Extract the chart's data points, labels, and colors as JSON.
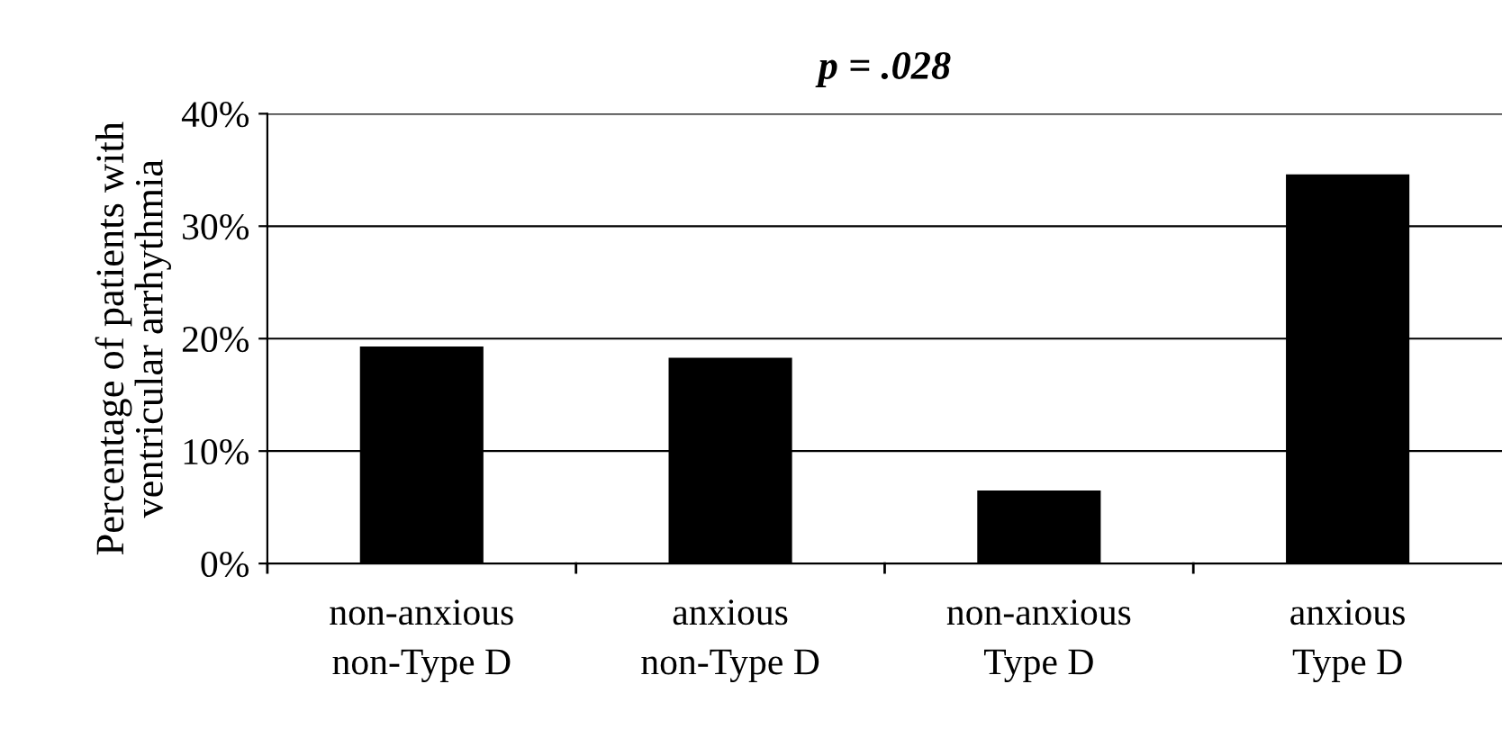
{
  "chart_data": {
    "type": "bar",
    "title": "p = .028",
    "ylabel": "Percentage of patients with\nventricular arrhythmia",
    "categories": [
      "non-anxious\nnon-Type D",
      "anxious\nnon-Type D",
      "non-anxious\nType D",
      "anxious\nType D"
    ],
    "values": [
      19.3,
      18.3,
      6.5,
      34.6
    ],
    "color": "#000000",
    "ylim": [
      0,
      40
    ],
    "yticks": [
      {
        "value": 0,
        "label": "0%"
      },
      {
        "value": 10,
        "label": "10%"
      },
      {
        "value": 20,
        "label": "20%"
      },
      {
        "value": 30,
        "label": "30%"
      },
      {
        "value": 40,
        "label": "40%"
      }
    ],
    "grid": "y",
    "legend": false
  }
}
